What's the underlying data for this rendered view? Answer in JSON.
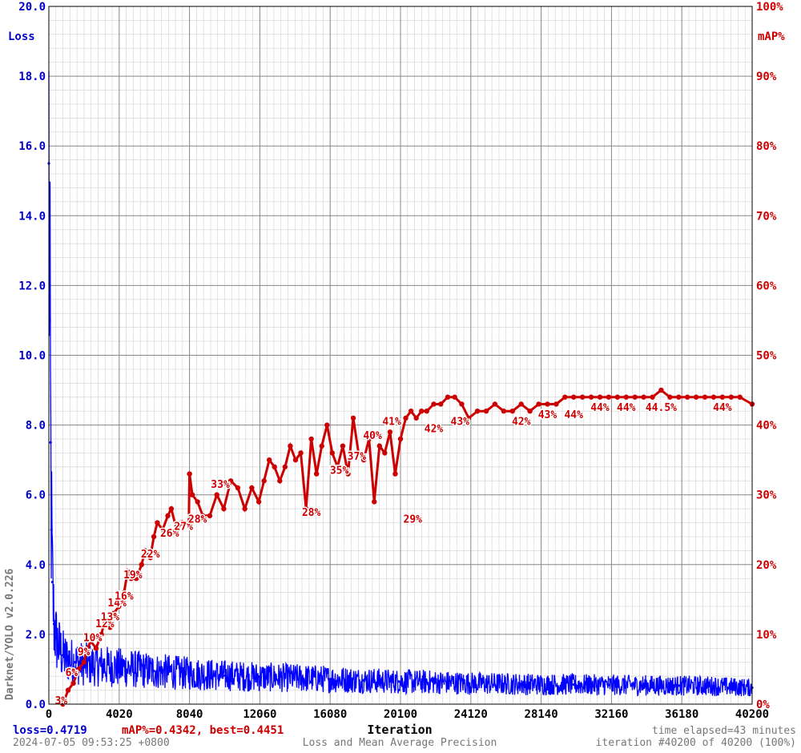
{
  "window": {
    "app_name": "Darknet/YOLO v2.0.226"
  },
  "footer": {
    "loss_text": "loss=0.4719",
    "map_text": "mAP%=0.4342, best=0.4451",
    "timestamp": "2024-07-05 09:53:25 +0800",
    "subtitle": "Loss and Mean Average Precision",
    "time_elapsed": "time elapsed=43 minutes",
    "iteration_status": "iteration #40200 of 40200 (100%)"
  },
  "colors": {
    "loss": "#0000ff",
    "map": "#cc0000",
    "grid_major": "#888888",
    "grid_minor": "#d6d6d6"
  },
  "chart_data": {
    "type": "line",
    "title": "",
    "xlabel": "Iteration",
    "ylabel_left": "Loss",
    "ylabel_right": "mAP%",
    "xlim": [
      0,
      40200
    ],
    "ylim_left": [
      0,
      20
    ],
    "ylim_right": [
      0,
      100
    ],
    "x_ticks": [
      "0",
      "4020",
      "8040",
      "12060",
      "16080",
      "20100",
      "24120",
      "28140",
      "32160",
      "36180",
      "40200"
    ],
    "y_ticks_left": [
      "0.0",
      "2.0",
      "4.0",
      "6.0",
      "8.0",
      "10.0",
      "12.0",
      "14.0",
      "16.0",
      "18.0",
      "20.0"
    ],
    "y_ticks_right": [
      "0%",
      "10%",
      "20%",
      "30%",
      "40%",
      "50%",
      "60%",
      "70%",
      "80%",
      "90%",
      "100%"
    ],
    "grid": true,
    "series": [
      {
        "name": "Loss",
        "axis": "left",
        "points": [
          [
            0,
            15.5
          ],
          [
            50,
            11.0
          ],
          [
            100,
            7.5
          ],
          [
            150,
            5.0
          ],
          [
            200,
            3.5
          ],
          [
            300,
            2.3
          ],
          [
            400,
            1.9
          ],
          [
            600,
            1.6
          ],
          [
            800,
            1.4
          ],
          [
            1000,
            1.3
          ],
          [
            1500,
            1.2
          ],
          [
            2000,
            1.15
          ],
          [
            3000,
            1.1
          ],
          [
            4000,
            1.05
          ],
          [
            6000,
            0.95
          ],
          [
            8000,
            0.88
          ],
          [
            10000,
            0.82
          ],
          [
            12000,
            0.78
          ],
          [
            14000,
            0.75
          ],
          [
            16000,
            0.72
          ],
          [
            18000,
            0.68
          ],
          [
            20000,
            0.65
          ],
          [
            22000,
            0.63
          ],
          [
            24000,
            0.6
          ],
          [
            26000,
            0.58
          ],
          [
            28000,
            0.57
          ],
          [
            30000,
            0.56
          ],
          [
            32000,
            0.55
          ],
          [
            34000,
            0.54
          ],
          [
            36000,
            0.53
          ],
          [
            38000,
            0.52
          ],
          [
            40200,
            0.47
          ]
        ]
      },
      {
        "name": "mAP%",
        "axis": "right",
        "points": [
          [
            800,
            0
          ],
          [
            1100,
            2
          ],
          [
            1400,
            3
          ],
          [
            1700,
            5
          ],
          [
            2000,
            6
          ],
          [
            2200,
            8
          ],
          [
            2400,
            9
          ],
          [
            2700,
            8
          ],
          [
            3000,
            10
          ],
          [
            3200,
            12
          ],
          [
            3500,
            11
          ],
          [
            3700,
            13
          ],
          [
            4000,
            14
          ],
          [
            4300,
            16
          ],
          [
            4500,
            19
          ],
          [
            4700,
            18
          ],
          [
            5000,
            18
          ],
          [
            5300,
            20
          ],
          [
            5500,
            22
          ],
          [
            5800,
            21
          ],
          [
            6000,
            24
          ],
          [
            6200,
            26
          ],
          [
            6500,
            25
          ],
          [
            6800,
            27
          ],
          [
            7000,
            28
          ],
          [
            7300,
            25
          ],
          [
            7600,
            26
          ],
          [
            8000,
            26
          ],
          [
            8040,
            33
          ],
          [
            8200,
            30
          ],
          [
            8500,
            29
          ],
          [
            8800,
            27
          ],
          [
            9200,
            27
          ],
          [
            9600,
            30
          ],
          [
            10000,
            28
          ],
          [
            10400,
            32
          ],
          [
            10800,
            31
          ],
          [
            11200,
            28
          ],
          [
            11600,
            31
          ],
          [
            12000,
            29
          ],
          [
            12300,
            32
          ],
          [
            12600,
            35
          ],
          [
            12900,
            34
          ],
          [
            13200,
            32
          ],
          [
            13500,
            34
          ],
          [
            13800,
            37
          ],
          [
            14100,
            35
          ],
          [
            14400,
            36
          ],
          [
            14700,
            28
          ],
          [
            15000,
            38
          ],
          [
            15300,
            33
          ],
          [
            15600,
            37
          ],
          [
            15900,
            40
          ],
          [
            16200,
            36
          ],
          [
            16500,
            34
          ],
          [
            16800,
            37
          ],
          [
            17100,
            33
          ],
          [
            17400,
            41
          ],
          [
            17700,
            36
          ],
          [
            18000,
            35
          ],
          [
            18300,
            38
          ],
          [
            18600,
            29
          ],
          [
            18900,
            37
          ],
          [
            19200,
            36
          ],
          [
            19500,
            39
          ],
          [
            19800,
            33
          ],
          [
            20100,
            38
          ],
          [
            20400,
            41
          ],
          [
            20700,
            42
          ],
          [
            21000,
            41
          ],
          [
            21300,
            42
          ],
          [
            21600,
            42
          ],
          [
            22000,
            43
          ],
          [
            22400,
            43
          ],
          [
            22800,
            44
          ],
          [
            23200,
            44
          ],
          [
            23600,
            43
          ],
          [
            24000,
            41
          ],
          [
            24500,
            42
          ],
          [
            25000,
            42
          ],
          [
            25500,
            43
          ],
          [
            26000,
            42
          ],
          [
            26500,
            42
          ],
          [
            27000,
            43
          ],
          [
            27500,
            42
          ],
          [
            28000,
            43
          ],
          [
            28500,
            43
          ],
          [
            29000,
            43
          ],
          [
            29500,
            44
          ],
          [
            30000,
            44
          ],
          [
            30500,
            44
          ],
          [
            31000,
            44
          ],
          [
            31500,
            44
          ],
          [
            32000,
            44
          ],
          [
            32500,
            44
          ],
          [
            33000,
            44
          ],
          [
            33500,
            44
          ],
          [
            34000,
            44
          ],
          [
            34500,
            44
          ],
          [
            35000,
            45
          ],
          [
            35500,
            44
          ],
          [
            36000,
            44
          ],
          [
            36500,
            44
          ],
          [
            37000,
            44
          ],
          [
            37500,
            44
          ],
          [
            38000,
            44
          ],
          [
            38500,
            44
          ],
          [
            39000,
            44
          ],
          [
            39500,
            44
          ],
          [
            40200,
            43
          ]
        ]
      }
    ],
    "annotations": [
      {
        "x": 700,
        "y": 0,
        "text": "3%"
      },
      {
        "x": 1300,
        "y": 4,
        "text": "6%"
      },
      {
        "x": 2000,
        "y": 7,
        "text": "9%"
      },
      {
        "x": 2500,
        "y": 9,
        "text": "10%"
      },
      {
        "x": 3200,
        "y": 11,
        "text": "12%"
      },
      {
        "x": 3500,
        "y": 12,
        "text": "13%"
      },
      {
        "x": 3900,
        "y": 14,
        "text": "14%"
      },
      {
        "x": 4300,
        "y": 15,
        "text": "16%"
      },
      {
        "x": 4800,
        "y": 18,
        "text": "19%"
      },
      {
        "x": 5800,
        "y": 21,
        "text": "22%"
      },
      {
        "x": 6900,
        "y": 24,
        "text": "26%"
      },
      {
        "x": 7700,
        "y": 25,
        "text": "27%"
      },
      {
        "x": 8500,
        "y": 26,
        "text": "28%"
      },
      {
        "x": 9800,
        "y": 31,
        "text": "33%"
      },
      {
        "x": 15000,
        "y": 27,
        "text": "28%"
      },
      {
        "x": 16600,
        "y": 33,
        "text": "35%"
      },
      {
        "x": 17600,
        "y": 35,
        "text": "37%"
      },
      {
        "x": 18500,
        "y": 38,
        "text": "40%"
      },
      {
        "x": 19600,
        "y": 40,
        "text": "41%"
      },
      {
        "x": 20800,
        "y": 26,
        "text": "29%"
      },
      {
        "x": 22000,
        "y": 39,
        "text": "42%"
      },
      {
        "x": 23500,
        "y": 40,
        "text": "43%"
      },
      {
        "x": 27000,
        "y": 40,
        "text": "42%"
      },
      {
        "x": 28500,
        "y": 41,
        "text": "43%"
      },
      {
        "x": 30000,
        "y": 41,
        "text": "44%"
      },
      {
        "x": 31500,
        "y": 42,
        "text": "44%"
      },
      {
        "x": 33000,
        "y": 42,
        "text": "44%"
      },
      {
        "x": 35000,
        "y": 42,
        "text": "44.5%"
      },
      {
        "x": 38500,
        "y": 42,
        "text": "44%"
      }
    ]
  }
}
